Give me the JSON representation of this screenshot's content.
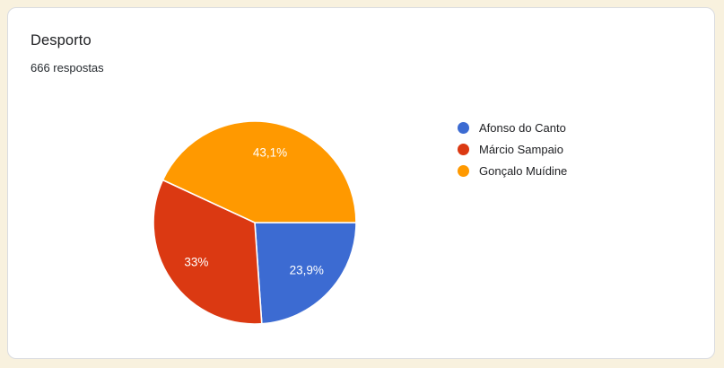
{
  "page": {
    "background_color": "#F8F1DE",
    "card_background": "#FFFFFF",
    "card_border_color": "#DADCE0"
  },
  "card": {
    "title": "Desporto",
    "responses_label": "666 respostas"
  },
  "chart_data": {
    "type": "pie",
    "title": "Desporto",
    "subtitle": "666 respostas",
    "legend_position": "right",
    "start_angle_deg": 0,
    "direction": "clockwise",
    "slice_label_color": "#FFFFFF",
    "slice_border_color": "#FFFFFF",
    "slices": [
      {
        "label": "Afonso do Canto",
        "value": 23.9,
        "display": "23,9%",
        "color": "#3C6BD2"
      },
      {
        "label": "Márcio Sampaio",
        "value": 33.0,
        "display": "33%",
        "color": "#DB3912"
      },
      {
        "label": "Gonçalo Muídine",
        "value": 43.1,
        "display": "43,1%",
        "color": "#FF9900"
      }
    ]
  }
}
